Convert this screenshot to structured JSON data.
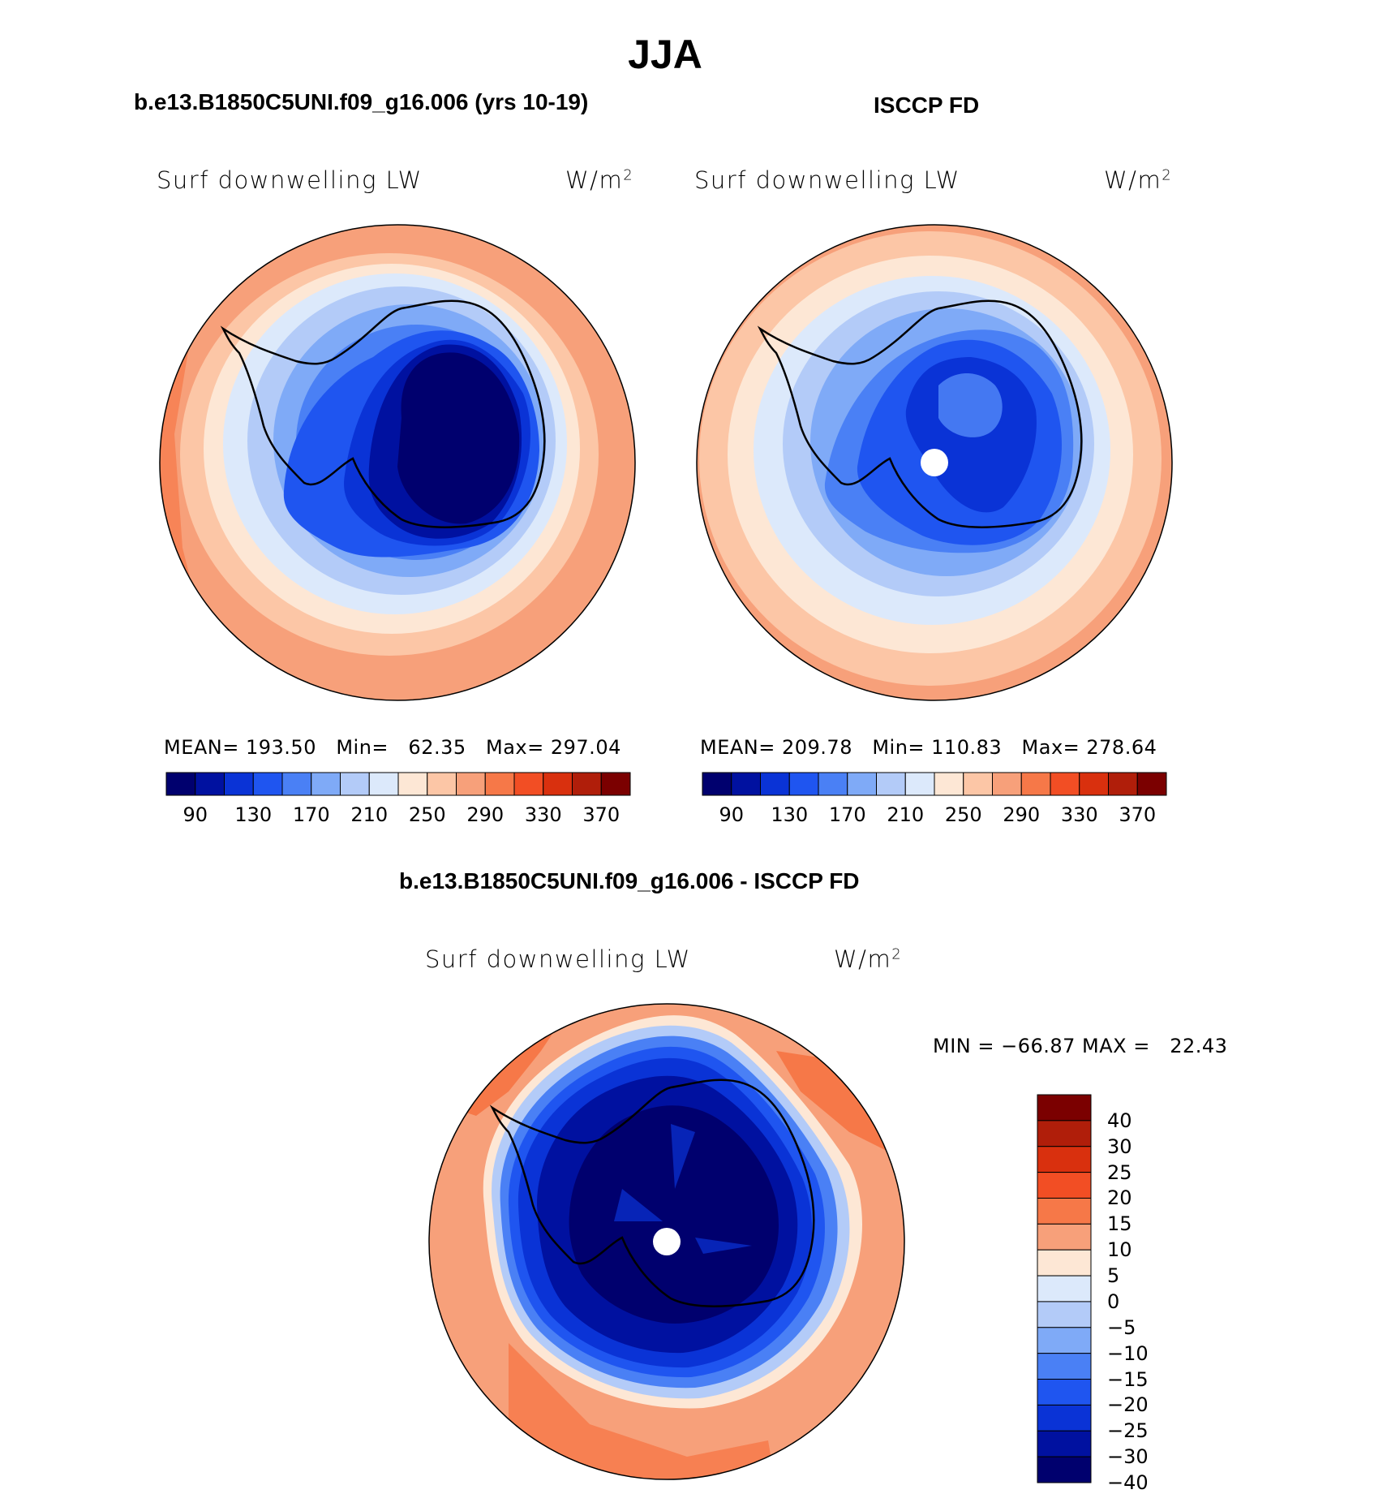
{
  "figure_title": "JJA",
  "top_left": {
    "case_title": "b.e13.B1850C5UNI.f09_g16.006 (yrs 10-19)",
    "variable_label": "Surf downwelling LW",
    "unit_text": "W/m",
    "unit_sup": "2",
    "stats_text": "MEAN= 193.50   Min=   62.35   Max= 297.04",
    "colorbar_labels": [
      "90",
      "130",
      "170",
      "210",
      "250",
      "290",
      "330",
      "370"
    ]
  },
  "top_right": {
    "case_title": "ISCCP FD",
    "variable_label": "Surf downwelling LW",
    "unit_text": "W/m",
    "unit_sup": "2",
    "stats_text": "MEAN= 209.78   Min= 110.83   Max= 278.64",
    "colorbar_labels": [
      "90",
      "130",
      "170",
      "210",
      "250",
      "290",
      "330",
      "370"
    ]
  },
  "bottom": {
    "case_title": "b.e13.B1850C5UNI.f09_g16.006 - ISCCP FD",
    "variable_label": "Surf downwelling LW",
    "unit_text": "W/m",
    "unit_sup": "2",
    "stats_text": "MIN = −66.87 MAX =   22.43",
    "colorbar_labels": [
      "40",
      "30",
      "25",
      "20",
      "15",
      "10",
      "5",
      "0",
      "−5",
      "−10",
      "−15",
      "−20",
      "−25",
      "−30",
      "−40"
    ]
  },
  "colors": {
    "abs_scale": [
      "#00006e",
      "#0011a0",
      "#0a33d6",
      "#1f55f0",
      "#4a80f5",
      "#7faaf7",
      "#b3cbf8",
      "#dce9fb",
      "#fde7d5",
      "#fcc6a6",
      "#f7a07a",
      "#f67848",
      "#f24e24",
      "#d9300e",
      "#b01e0a",
      "#7b0000"
    ],
    "diff_scale": [
      "#7b0000",
      "#b01e0a",
      "#d9300e",
      "#f24e24",
      "#f67848",
      "#f7a07a",
      "#fde7d5",
      "#dce9fb",
      "#b3cbf8",
      "#7faaf7",
      "#4a80f5",
      "#1f55f0",
      "#0a33d6",
      "#0011a0",
      "#00006e"
    ]
  }
}
